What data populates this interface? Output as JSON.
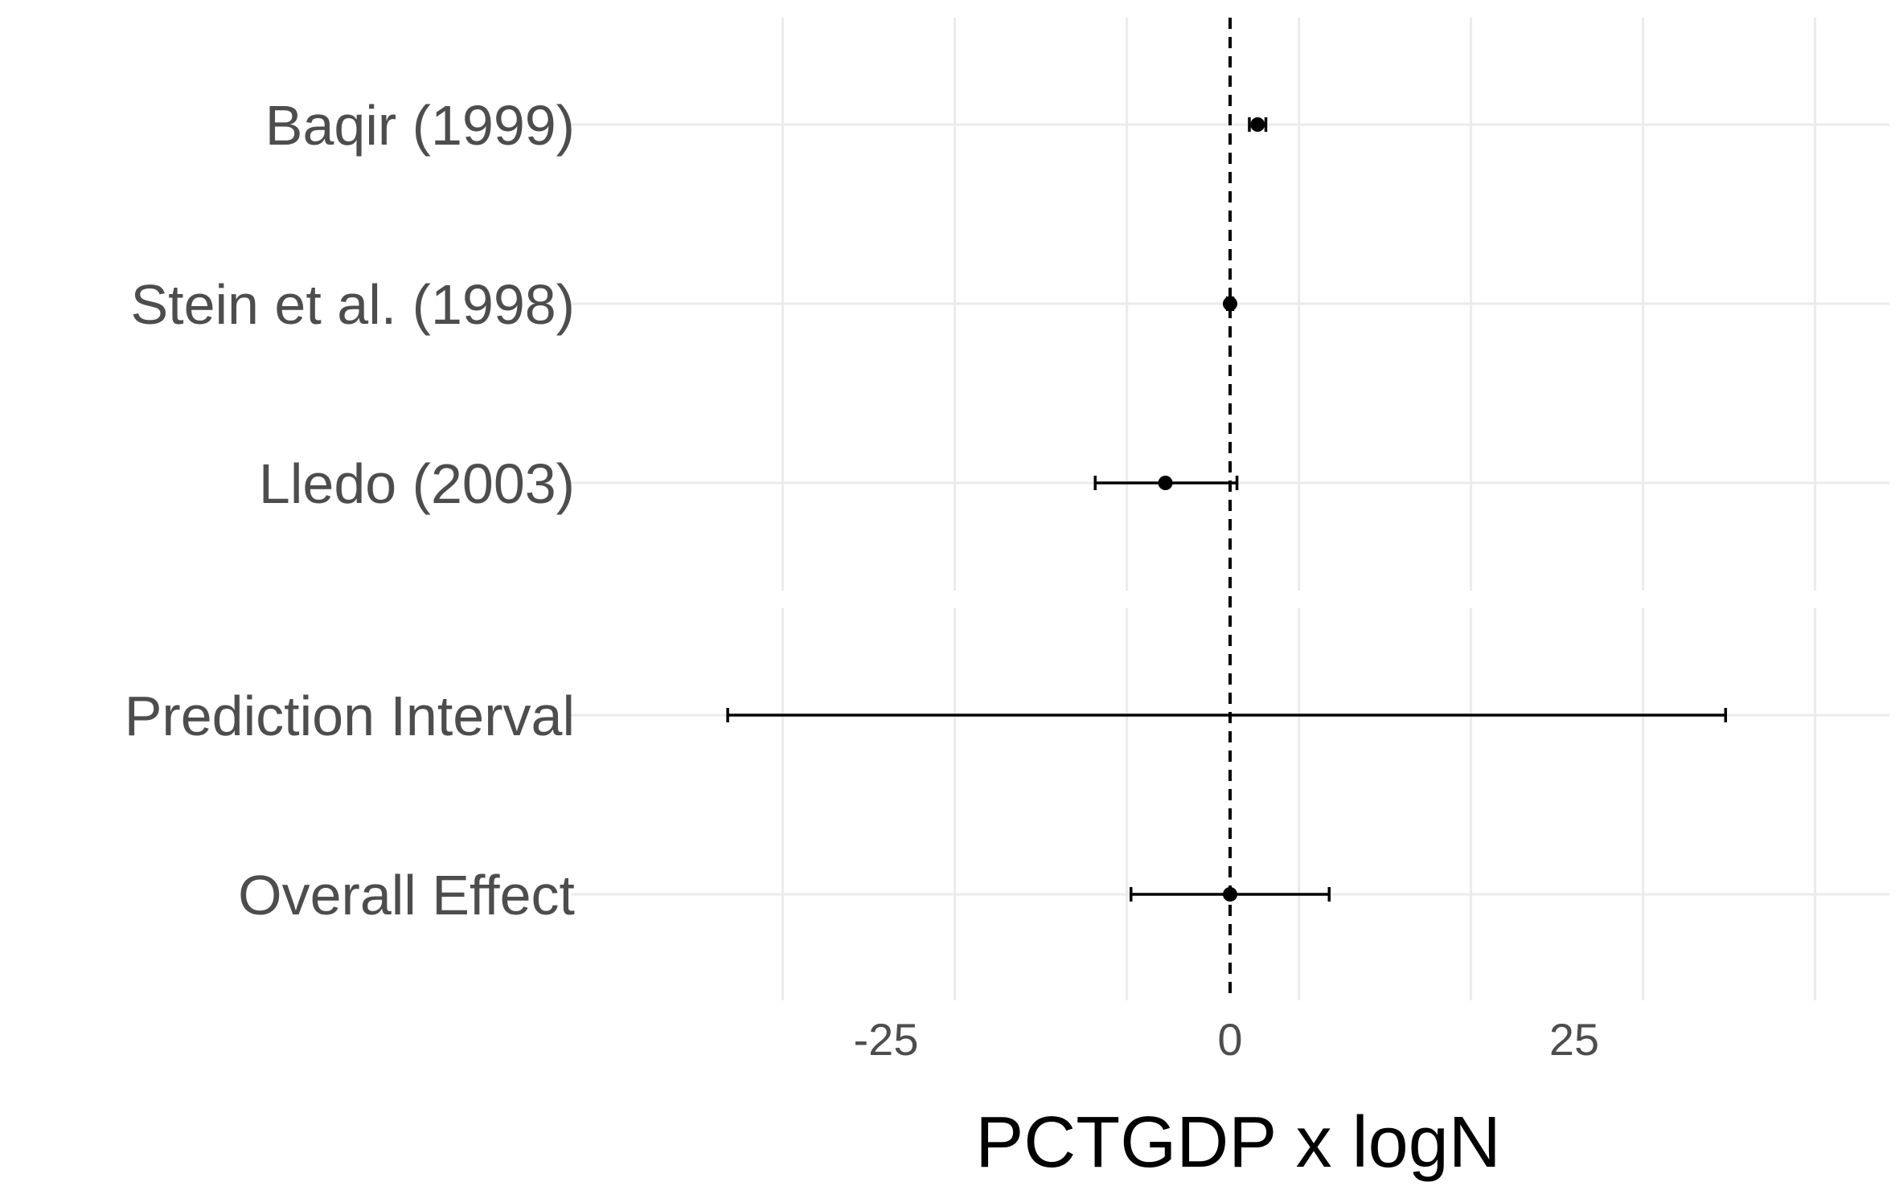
{
  "chart_data": {
    "type": "forest",
    "xlabel": "PCTGDP x logN",
    "xlim": [
      -45,
      45
    ],
    "x_ticks": [
      -25,
      0,
      25
    ],
    "x_tick_labels": [
      "-25",
      "0",
      "25"
    ],
    "reference_line": 0,
    "grid": true,
    "studies": [
      {
        "label": "Baqir (1999)",
        "estimate": 2.0,
        "lower": 1.4,
        "upper": 2.6
      },
      {
        "label": "Stein et al. (1998)",
        "estimate": 0.0,
        "lower": -0.2,
        "upper": 0.2
      },
      {
        "label": "Lledo (2003)",
        "estimate": -4.7,
        "lower": -9.8,
        "upper": 0.5
      }
    ],
    "summary": [
      {
        "label": "Prediction Interval",
        "estimate": null,
        "lower": -36.5,
        "upper": 36.0
      },
      {
        "label": "Overall Effect",
        "estimate": 0.0,
        "lower": -7.2,
        "upper": 7.2
      }
    ],
    "colors": {
      "grid": "#ebebeb",
      "marks": "#000000",
      "text": "#4d4d4d"
    }
  }
}
